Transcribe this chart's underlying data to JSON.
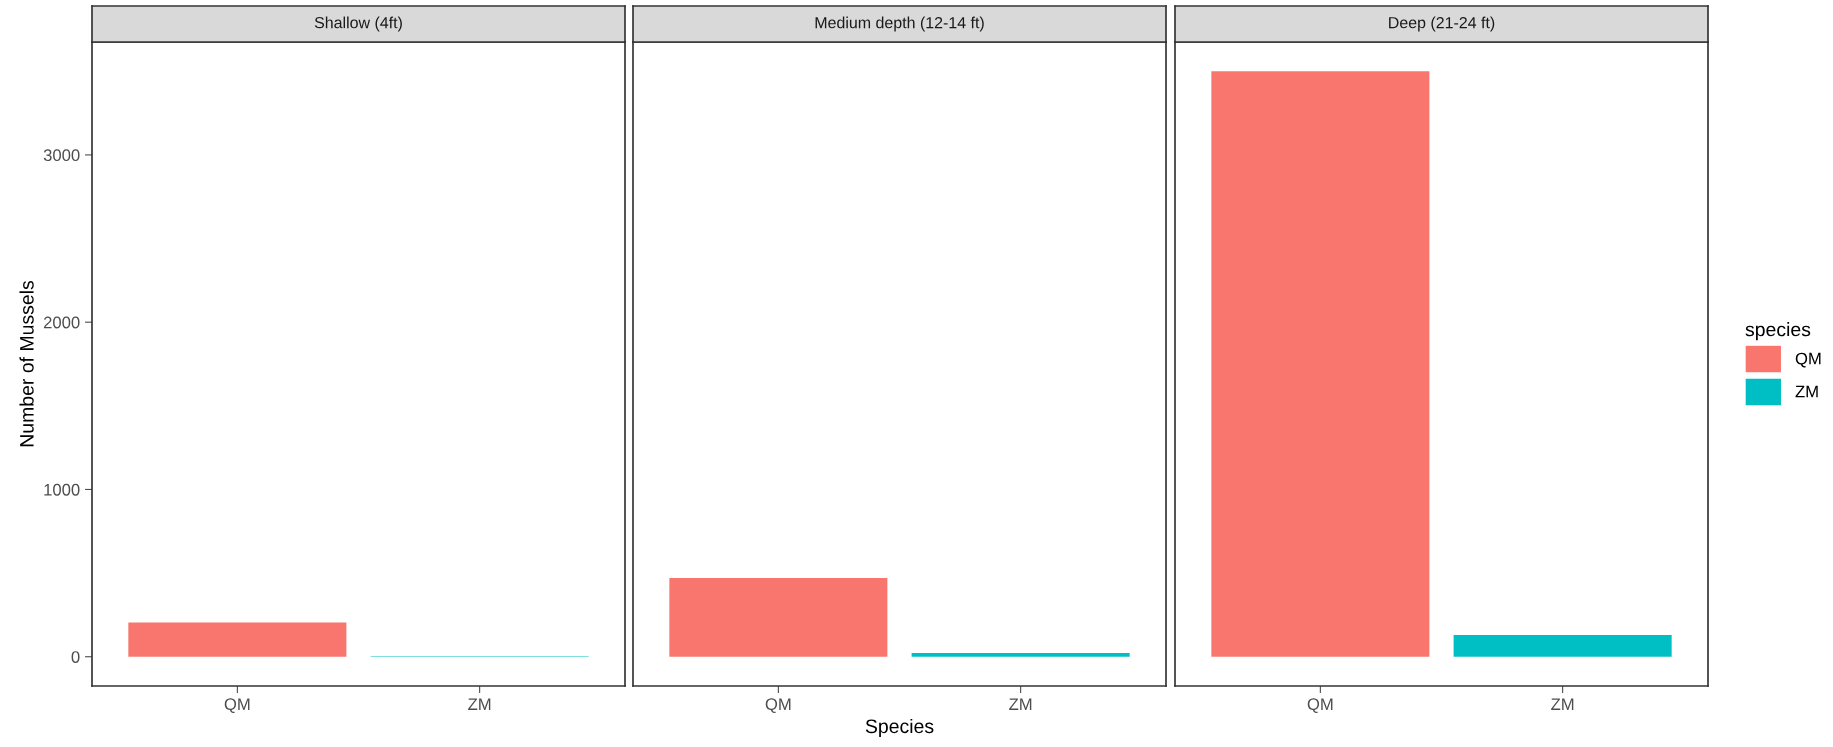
{
  "chart_data": [
    {
      "type": "bar",
      "title": "Shallow (4ft)",
      "ylabel": "Number of Mussels",
      "categories": [
        "QM",
        "ZM"
      ],
      "series": [
        {
          "color": "#f8766d",
          "values": [
            205,
            null
          ]
        },
        {
          "color": "#00bfc4",
          "values": [
            null,
            3
          ]
        }
      ],
      "ylim": [
        -175,
        3675
      ],
      "yticks": [
        0,
        1000,
        2000,
        3000
      ]
    },
    {
      "type": "bar",
      "title": "Medium depth (12-14 ft)",
      "xlabel": "Species",
      "categories": [
        "QM",
        "ZM"
      ],
      "series": [
        {
          "color": "#f8766d",
          "values": [
            470,
            null
          ]
        },
        {
          "color": "#00bfc4",
          "values": [
            null,
            23
          ]
        }
      ],
      "ylim": [
        -175,
        3675
      ],
      "yticks": [
        0,
        1000,
        2000,
        3000
      ],
      "tick_labels": "x"
    },
    {
      "type": "bar",
      "title": "Deep (21-24 ft)",
      "categories": [
        "QM",
        "ZM"
      ],
      "series": [
        {
          "name": "QM",
          "color": "#f8766d",
          "values": [
            3500,
            null
          ]
        },
        {
          "name": "ZM",
          "color": "#00bfc4",
          "values": [
            null,
            130
          ]
        }
      ],
      "ylim": [
        -175,
        3675
      ],
      "yticks": [
        0,
        1000,
        2000,
        3000
      ],
      "tick_labels": "x",
      "legend": "right",
      "legend_title": "species"
    }
  ]
}
